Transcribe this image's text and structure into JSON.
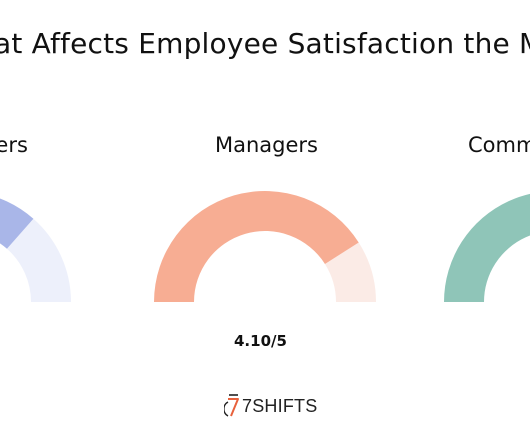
{
  "title": "at Affects Employee Satisfaction the M",
  "chart_data": {
    "type": "gauge",
    "max": 5,
    "series": [
      {
        "name": "kers",
        "score_label": "",
        "fill_color": "#a9b6e8",
        "track_color": "#edf0fb"
      },
      {
        "name": "Managers",
        "score_label": "4.10/5",
        "value": 4.1,
        "fill_color": "#f7ad93",
        "track_color": "#fbebe6"
      },
      {
        "name": "Comm",
        "score_label": "",
        "fill_color": "#8fc5b8",
        "track_color": "#e7f3ef"
      }
    ]
  },
  "logo": {
    "text": "7SHIFTS",
    "icon": "stopwatch-icon"
  }
}
